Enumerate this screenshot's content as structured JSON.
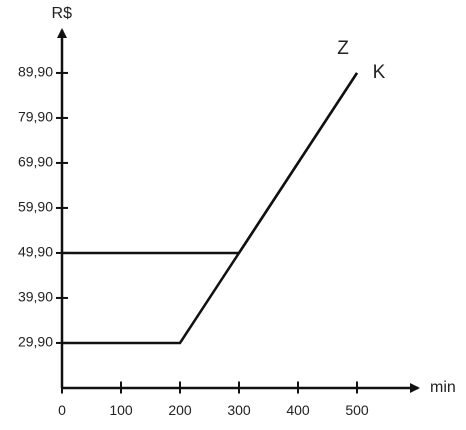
{
  "chart_data": {
    "type": "line",
    "y_label": "R$",
    "x_label": "min",
    "xlim": [
      0,
      600
    ],
    "ylim": [
      20,
      98
    ],
    "xticks": [
      0,
      100,
      200,
      300,
      400,
      500
    ],
    "yticks": [
      {
        "value": 29.9,
        "label": "29,90"
      },
      {
        "value": 39.9,
        "label": "39,90"
      },
      {
        "value": 49.9,
        "label": "49,90"
      },
      {
        "value": 59.9,
        "label": "59,90"
      },
      {
        "value": 69.9,
        "label": "69,90"
      },
      {
        "value": 79.9,
        "label": "79,90"
      },
      {
        "value": 89.9,
        "label": "89,90"
      }
    ],
    "series": [
      {
        "name": "Z",
        "color": "#111111",
        "x": [
          0,
          300,
          500
        ],
        "values": [
          49.9,
          49.9,
          89.9
        ]
      },
      {
        "name": "K",
        "color": "#111111",
        "x": [
          0,
          200,
          500
        ],
        "values": [
          29.9,
          29.9,
          89.9
        ]
      }
    ]
  }
}
